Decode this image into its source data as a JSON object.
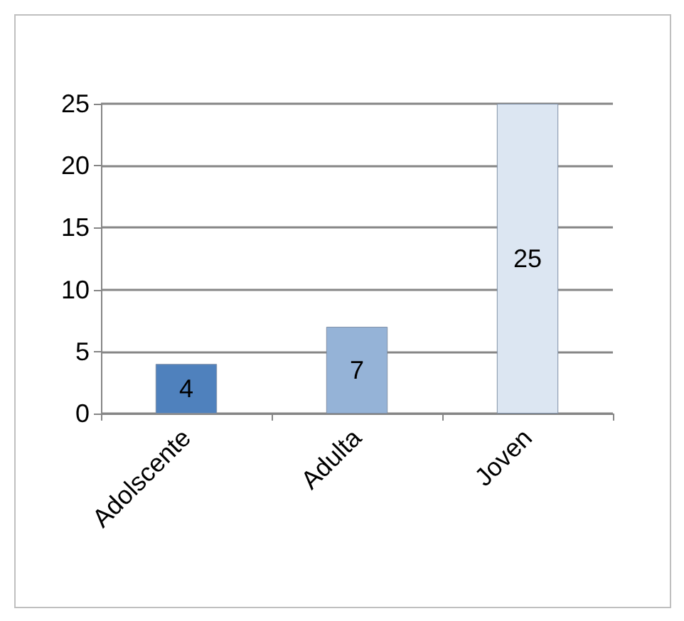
{
  "chart_data": {
    "type": "bar",
    "categories": [
      "Adolscente",
      "Adulta",
      "Joven"
    ],
    "values": [
      4,
      7,
      25
    ],
    "colors": [
      "#4f81bd",
      "#95b3d7",
      "#dce6f2"
    ],
    "ylim": [
      0,
      25
    ],
    "yticks": [
      0,
      5,
      10,
      15,
      20,
      25
    ],
    "grid": "y",
    "data_labels": true
  }
}
